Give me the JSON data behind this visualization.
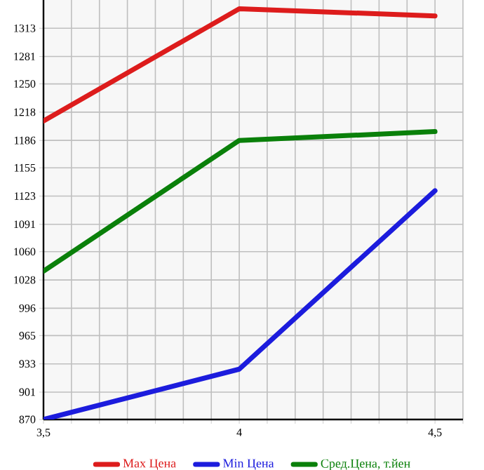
{
  "chart_data": {
    "type": "line",
    "x": [
      3.5,
      4,
      4.5
    ],
    "series": [
      {
        "name": "Max Цена",
        "color": "#dd1c1c",
        "values": [
          1208,
          1335,
          1327
        ]
      },
      {
        "name": "Min Цена",
        "color": "#1c1cdd",
        "values": [
          870,
          927,
          1129
        ]
      },
      {
        "name": "Сред.Цена, т.йен",
        "color": "#0a800a",
        "values": [
          1038,
          1186,
          1196
        ]
      }
    ],
    "xlim": [
      3.5,
      4.5714
    ],
    "xticks": [
      {
        "value": 3.5,
        "label": "3,5"
      },
      {
        "value": 3.5714,
        "label": null
      },
      {
        "value": 3.6429,
        "label": null
      },
      {
        "value": 3.7143,
        "label": null
      },
      {
        "value": 3.7857,
        "label": null
      },
      {
        "value": 3.8571,
        "label": null
      },
      {
        "value": 3.9286,
        "label": null
      },
      {
        "value": 4,
        "label": "4"
      },
      {
        "value": 4.0714,
        "label": null
      },
      {
        "value": 4.1429,
        "label": null
      },
      {
        "value": 4.2143,
        "label": null
      },
      {
        "value": 4.2857,
        "label": null
      },
      {
        "value": 4.3571,
        "label": null
      },
      {
        "value": 4.4286,
        "label": null
      },
      {
        "value": 4.5,
        "label": "4,5"
      },
      {
        "value": 4.5714,
        "label": null
      }
    ],
    "ylim": [
      870,
      1345
    ],
    "yticks": [
      870,
      901,
      933,
      965,
      996,
      1028,
      1060,
      1091,
      1123,
      1155,
      1186,
      1218,
      1250,
      1281,
      1313
    ],
    "grid": true,
    "legend": "bottom",
    "marker": "none",
    "line_style": "solid"
  }
}
